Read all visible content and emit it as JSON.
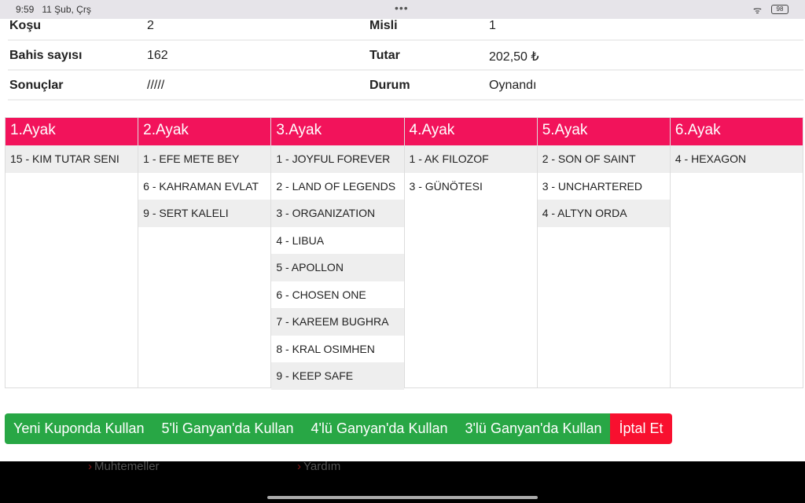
{
  "status": {
    "time": "9:59",
    "date": "11 Şub, Çrş",
    "battery": "98"
  },
  "info": [
    {
      "l1": "Koşu",
      "v1": "2",
      "l2": "Misli",
      "v2": "1"
    },
    {
      "l1": "Bahis sayısı",
      "v1": "162",
      "l2": "Tutar",
      "v2": "202,50 ₺"
    },
    {
      "l1": "Sonuçlar",
      "v1": "/////",
      "l2": "Durum",
      "v2": "Oynandı"
    }
  ],
  "legs": [
    {
      "title": "1.Ayak",
      "items": [
        "15 - Kim Tutar Seni"
      ]
    },
    {
      "title": "2.Ayak",
      "items": [
        "1 - Efe Mete Bey",
        "6 - Kahraman Evlat",
        "9 - Sert Kaleli"
      ]
    },
    {
      "title": "3.Ayak",
      "items": [
        "1 - Joyful Forever",
        "2 - Land of Legends",
        "3 - Organization",
        "4 - Libua",
        "5 - Apollon",
        "6 - Chosen One",
        "7 - Kareem Bughra",
        "8 - Kral Osimhen",
        "9 - Keep Safe"
      ]
    },
    {
      "title": "4.Ayak",
      "items": [
        "1 - Ak Filozof",
        "3 - Günötesi"
      ]
    },
    {
      "title": "5.Ayak",
      "items": [
        "2 - Son of Saint",
        "3 - Unchartered",
        "4 - Altyn Orda"
      ]
    },
    {
      "title": "6.Ayak",
      "items": [
        "4 - Hexagon"
      ]
    }
  ],
  "buttons": {
    "new": "Yeni Kuponda Kullan",
    "g5": "5'li Ganyan'da Kullan",
    "g4": "4'lü Ganyan'da Kullan",
    "g3": "3'lü Ganyan'da Kullan",
    "cancel": "İptal Et"
  },
  "footer": {
    "link1": "Muhtemeller",
    "link2": "Yardım"
  },
  "colors": {
    "header": "#f2135b",
    "green": "#28a745",
    "red": "#f8102f"
  }
}
